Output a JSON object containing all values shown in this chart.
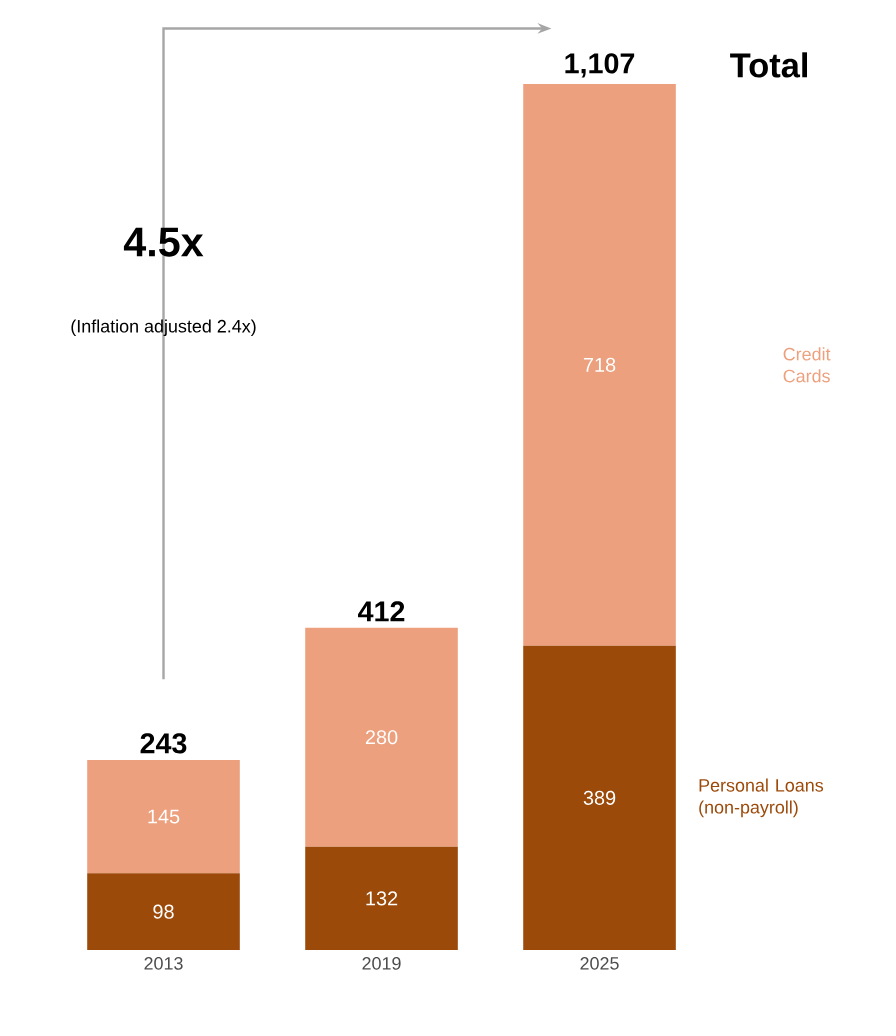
{
  "chart_data": {
    "type": "bar",
    "stacked": true,
    "data_labels": true,
    "categories": [
      "2013",
      "2019",
      "2025"
    ],
    "series": [
      {
        "name": "Personal Loans (non-payroll)",
        "color": "#9c4a0a",
        "values": [
          98,
          132,
          389
        ]
      },
      {
        "name": "Credit Cards",
        "color": "#eda07e",
        "values": [
          145,
          280,
          718
        ]
      }
    ],
    "totals": [
      "243",
      "412",
      "1,107"
    ],
    "annotations": [
      "4.5x",
      "(Inflation adjusted 2.4x)",
      "Total"
    ]
  }
}
